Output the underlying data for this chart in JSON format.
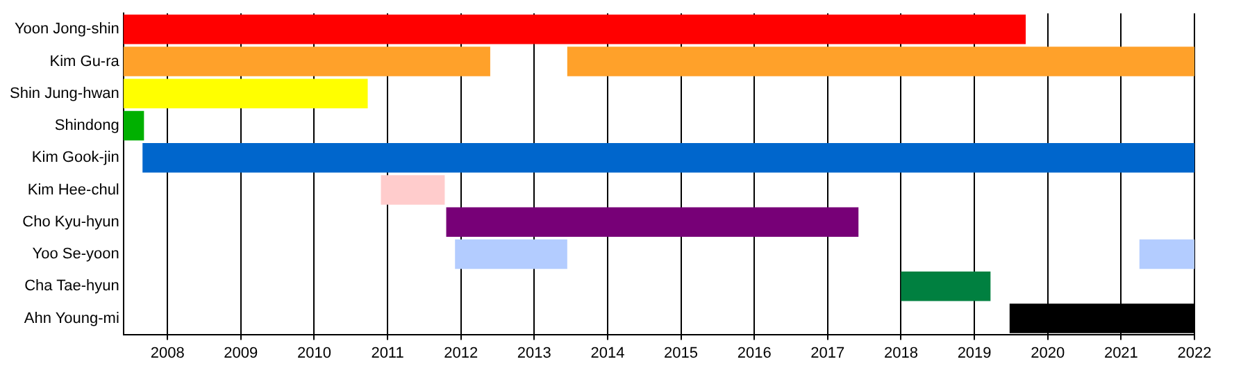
{
  "chart_data": {
    "type": "bar",
    "orientation": "horizontal",
    "grid": "x",
    "legend": false,
    "categories": [
      "Yoon Jong-shin",
      "Kim Gu-ra",
      "Shin Jung-hwan",
      "Shindong",
      "Kim Gook-jin",
      "Kim Hee-chul",
      "Cho Kyu-hyun",
      "Yoo Se-yoon",
      "Cha Tae-hyun",
      "Ahn Young-mi"
    ],
    "series": [
      {
        "base": [
          2007.4,
          2007.4,
          2007.4,
          2007.4,
          2007.66,
          2010.91,
          2011.8,
          2011.92,
          2018.0,
          2019.48
        ],
        "values": [
          12.3,
          5.0,
          3.33,
          0.28,
          14.34,
          0.87,
          5.62,
          1.53,
          1.22,
          2.52
        ],
        "colors": [
          "#ff0000",
          "#ffa12a",
          "#ffff00",
          "#00b000",
          "#0066cc",
          "#ffcccc",
          "#770077",
          "#b3ccff",
          "#008040",
          "#000000"
        ]
      },
      {
        "base": [
          null,
          2013.45,
          null,
          null,
          null,
          null,
          null,
          2021.25,
          null,
          null
        ],
        "values": [
          null,
          8.55,
          null,
          null,
          null,
          null,
          null,
          0.75,
          null,
          null
        ],
        "colors": [
          "#ff0000",
          "#ffa12a",
          "#ffff00",
          "#00b000",
          "#0066cc",
          "#ffcccc",
          "#770077",
          "#b3ccff",
          "#008040",
          "#000000"
        ]
      }
    ],
    "xlim": [
      2007.4,
      2022
    ],
    "xticks": [
      2008,
      2009,
      2010,
      2011,
      2012,
      2013,
      2014,
      2015,
      2016,
      2017,
      2018,
      2019,
      2020,
      2021,
      2022
    ]
  }
}
